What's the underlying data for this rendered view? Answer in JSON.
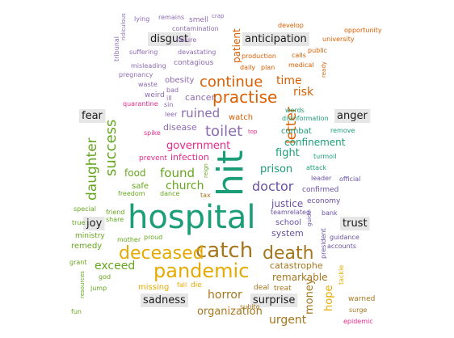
{
  "chart_data": {
    "type": "wordcloud",
    "categories": [
      {
        "name": "disgust",
        "color": "#8c6bb1"
      },
      {
        "name": "anticipation",
        "color": "#d95f02"
      },
      {
        "name": "fear",
        "color": "#1b9e77"
      },
      {
        "name": "anger",
        "color": "#e7298a"
      },
      {
        "name": "joy",
        "color": "#66a61e"
      },
      {
        "name": "trust",
        "color": "#6a51a3"
      },
      {
        "name": "sadness",
        "color": "#a6761d"
      },
      {
        "name": "surprise",
        "color": "#e6ab02"
      }
    ],
    "words": [
      {
        "text": "hospital",
        "category": "fear",
        "size": 40
      },
      {
        "text": "hit",
        "category": "fear",
        "size": 44,
        "rotate": true
      },
      {
        "text": "catch",
        "category": "sadness",
        "size": 26
      },
      {
        "text": "pandemic",
        "category": "surprise",
        "size": 24
      },
      {
        "text": "deceased",
        "category": "surprise",
        "size": 22
      },
      {
        "text": "death",
        "category": "sadness",
        "size": 22
      },
      {
        "text": "practise",
        "category": "anticipation",
        "size": 20
      },
      {
        "text": "continue",
        "category": "anticipation",
        "size": 18
      },
      {
        "text": "toilet",
        "category": "disgust",
        "size": 18
      },
      {
        "text": "success",
        "category": "joy",
        "size": 18,
        "rotate": true
      },
      {
        "text": "daughter",
        "category": "joy",
        "size": 17,
        "rotate": true
      },
      {
        "text": "letter",
        "category": "anticipation",
        "size": 17,
        "rotate": true
      },
      {
        "text": "doctor",
        "category": "trust",
        "size": 16
      },
      {
        "text": "ruined",
        "category": "disgust",
        "size": 15
      },
      {
        "text": "found",
        "category": "joy",
        "size": 15
      },
      {
        "text": "church",
        "category": "joy",
        "size": 14
      },
      {
        "text": "horror",
        "category": "sadness",
        "size": 14
      },
      {
        "text": "exceed",
        "category": "joy",
        "size": 14
      },
      {
        "text": "time",
        "category": "anticipation",
        "size": 14
      },
      {
        "text": "risk",
        "category": "anticipation",
        "size": 14
      },
      {
        "text": "urgent",
        "category": "sadness",
        "size": 14
      },
      {
        "text": "organization",
        "category": "sadness",
        "size": 13
      },
      {
        "text": "prison",
        "category": "fear",
        "size": 13
      },
      {
        "text": "fight",
        "category": "fear",
        "size": 13
      },
      {
        "text": "money",
        "category": "sadness",
        "size": 13,
        "rotate": true
      },
      {
        "text": "hope",
        "category": "surprise",
        "size": 13,
        "rotate": true
      },
      {
        "text": "government",
        "category": "anger",
        "size": 13
      },
      {
        "text": "justice",
        "category": "trust",
        "size": 12
      },
      {
        "text": "remarkable",
        "category": "sadness",
        "size": 12
      },
      {
        "text": "confinement",
        "category": "fear",
        "size": 12
      },
      {
        "text": "food",
        "category": "joy",
        "size": 12
      },
      {
        "text": "patient",
        "category": "anticipation",
        "size": 12,
        "rotate": true
      },
      {
        "text": "system",
        "category": "trust",
        "size": 11
      },
      {
        "text": "cancer",
        "category": "disgust",
        "size": 11
      },
      {
        "text": "disease",
        "category": "disgust",
        "size": 11
      },
      {
        "text": "infection",
        "category": "anger",
        "size": 11
      },
      {
        "text": "catastrophe",
        "category": "sadness",
        "size": 11
      },
      {
        "text": "obesity",
        "category": "disgust",
        "size": 10
      },
      {
        "text": "watch",
        "category": "anticipation",
        "size": 10
      },
      {
        "text": "school",
        "category": "trust",
        "size": 10
      },
      {
        "text": "combat",
        "category": "fear",
        "size": 10
      },
      {
        "text": "safe",
        "category": "joy",
        "size": 10
      },
      {
        "text": "missing",
        "category": "surprise",
        "size": 10
      },
      {
        "text": "remedy",
        "category": "joy",
        "size": 10
      },
      {
        "text": "contagious",
        "category": "disgust",
        "size": 9
      },
      {
        "text": "prevent",
        "category": "anger",
        "size": 9
      },
      {
        "text": "confirmed",
        "category": "trust",
        "size": 9
      },
      {
        "text": "economy",
        "category": "trust",
        "size": 9
      },
      {
        "text": "ministry",
        "category": "joy",
        "size": 9
      },
      {
        "text": "deal",
        "category": "sadness",
        "size": 9
      },
      {
        "text": "treat",
        "category": "sadness",
        "size": 9
      },
      {
        "text": "subito",
        "category": "sadness",
        "size": 8
      },
      {
        "text": "warned",
        "category": "sadness",
        "size": 9
      },
      {
        "text": "surge",
        "category": "sadness",
        "size": 8
      },
      {
        "text": "epidemic",
        "category": "anger",
        "size": 8
      },
      {
        "text": "smell",
        "category": "disgust",
        "size": 9
      },
      {
        "text": "lying",
        "category": "disgust",
        "size": 8
      },
      {
        "text": "remains",
        "category": "disgust",
        "size": 8
      },
      {
        "text": "crap",
        "category": "disgust",
        "size": 7
      },
      {
        "text": "contamination",
        "category": "disgust",
        "size": 8
      },
      {
        "text": "failure",
        "category": "disgust",
        "size": 8
      },
      {
        "text": "suffering",
        "category": "disgust",
        "size": 8
      },
      {
        "text": "devastating",
        "category": "disgust",
        "size": 8
      },
      {
        "text": "misleading",
        "category": "disgust",
        "size": 8
      },
      {
        "text": "pregnancy",
        "category": "disgust",
        "size": 8
      },
      {
        "text": "waste",
        "category": "disgust",
        "size": 8
      },
      {
        "text": "bad",
        "category": "disgust",
        "size": 8
      },
      {
        "text": "weird",
        "category": "disgust",
        "size": 9
      },
      {
        "text": "ill",
        "category": "disgust",
        "size": 8
      },
      {
        "text": "quarantine",
        "category": "anger",
        "size": 8
      },
      {
        "text": "sin",
        "category": "disgust",
        "size": 8
      },
      {
        "text": "leer",
        "category": "disgust",
        "size": 8
      },
      {
        "text": "spike",
        "category": "anger",
        "size": 8
      },
      {
        "text": "ridiculous",
        "category": "disgust",
        "size": 7,
        "rotate": true
      },
      {
        "text": "tribunal",
        "category": "disgust",
        "size": 8,
        "rotate": true
      },
      {
        "text": "develop",
        "category": "anticipation",
        "size": 8
      },
      {
        "text": "opportunity",
        "category": "anticipation",
        "size": 8
      },
      {
        "text": "university",
        "category": "anticipation",
        "size": 8
      },
      {
        "text": "public",
        "category": "anticipation",
        "size": 8
      },
      {
        "text": "production",
        "category": "anticipation",
        "size": 8
      },
      {
        "text": "calls",
        "category": "anticipation",
        "size": 8
      },
      {
        "text": "medical",
        "category": "anticipation",
        "size": 8
      },
      {
        "text": "daily",
        "category": "anticipation",
        "size": 8
      },
      {
        "text": "plan",
        "category": "anticipation",
        "size": 8
      },
      {
        "text": "ready",
        "category": "anticipation",
        "size": 7,
        "rotate": true
      },
      {
        "text": "words",
        "category": "fear",
        "size": 8
      },
      {
        "text": "disinformation",
        "category": "fear",
        "size": 8
      },
      {
        "text": "top",
        "category": "anger",
        "size": 7
      },
      {
        "text": "remove",
        "category": "fear",
        "size": 8
      },
      {
        "text": "turmoil",
        "category": "fear",
        "size": 8
      },
      {
        "text": "attack",
        "category": "fear",
        "size": 8
      },
      {
        "text": "leader",
        "category": "trust",
        "size": 8
      },
      {
        "text": "official",
        "category": "trust",
        "size": 8
      },
      {
        "text": "teamrelated",
        "category": "trust",
        "size": 8
      },
      {
        "text": "bank",
        "category": "trust",
        "size": 8
      },
      {
        "text": "guide",
        "category": "trust",
        "size": 7,
        "rotate": true
      },
      {
        "text": "guidance",
        "category": "trust",
        "size": 8
      },
      {
        "text": "accounts",
        "category": "trust",
        "size": 8
      },
      {
        "text": "president",
        "category": "trust",
        "size": 8,
        "rotate": true
      },
      {
        "text": "tackle",
        "category": "surprise",
        "size": 8,
        "rotate": true
      },
      {
        "text": "reign",
        "category": "joy",
        "size": 7,
        "rotate": true
      },
      {
        "text": "freedom",
        "category": "joy",
        "size": 8
      },
      {
        "text": "dance",
        "category": "joy",
        "size": 8
      },
      {
        "text": "tax",
        "category": "sadness",
        "size": 8
      },
      {
        "text": "special",
        "category": "joy",
        "size": 8
      },
      {
        "text": "friend",
        "category": "joy",
        "size": 8
      },
      {
        "text": "share",
        "category": "joy",
        "size": 8
      },
      {
        "text": "true",
        "category": "joy",
        "size": 8
      },
      {
        "text": "proud",
        "category": "joy",
        "size": 8
      },
      {
        "text": "mother",
        "category": "joy",
        "size": 8
      },
      {
        "text": "grant",
        "category": "joy",
        "size": 8
      },
      {
        "text": "god",
        "category": "joy",
        "size": 8
      },
      {
        "text": "resources",
        "category": "joy",
        "size": 7,
        "rotate": true
      },
      {
        "text": "jump",
        "category": "joy",
        "size": 8
      },
      {
        "text": "fall",
        "category": "surprise",
        "size": 8
      },
      {
        "text": "die",
        "category": "surprise",
        "size": 9
      },
      {
        "text": "fun",
        "category": "joy",
        "size": 8
      }
    ]
  }
}
